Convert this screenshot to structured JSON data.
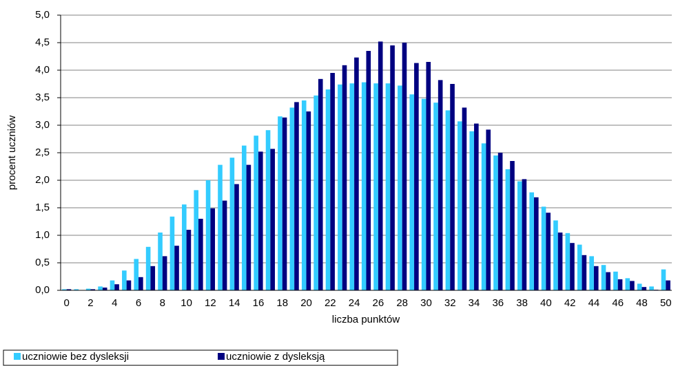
{
  "chart_data": {
    "type": "bar",
    "x_label": "liczba punktów",
    "y_label": "procent uczniów",
    "categories": [
      0,
      null,
      2,
      null,
      4,
      null,
      6,
      null,
      8,
      null,
      10,
      null,
      12,
      null,
      14,
      null,
      16,
      null,
      18,
      null,
      20,
      null,
      22,
      null,
      24,
      null,
      26,
      null,
      28,
      null,
      30,
      null,
      32,
      null,
      34,
      null,
      36,
      null,
      38,
      null,
      40,
      null,
      42,
      null,
      44,
      null,
      46,
      null,
      48,
      null,
      50
    ],
    "series": [
      {
        "name": "uczniowie bez dysleksji",
        "color": "#33ccff",
        "values": [
          0.02,
          0.02,
          0.03,
          0.07,
          0.18,
          0.36,
          0.57,
          0.79,
          1.05,
          1.34,
          1.56,
          1.82,
          2.0,
          2.28,
          2.41,
          2.63,
          2.81,
          2.91,
          3.16,
          3.32,
          3.45,
          3.54,
          3.65,
          3.74,
          3.76,
          3.78,
          3.76,
          3.76,
          3.72,
          3.56,
          3.48,
          3.41,
          3.27,
          3.07,
          2.89,
          2.67,
          2.45,
          2.2,
          1.98,
          1.78,
          1.52,
          1.27,
          1.04,
          0.83,
          0.62,
          0.46,
          0.34,
          0.22,
          0.12,
          0.07,
          0.38
        ]
      },
      {
        "name": "uczniowie z dysleksją",
        "color": "#000080",
        "values": [
          0.02,
          0.0,
          0.02,
          0.05,
          0.11,
          0.18,
          0.24,
          0.44,
          0.62,
          0.81,
          1.1,
          1.3,
          1.49,
          1.63,
          1.93,
          2.28,
          2.52,
          2.57,
          3.14,
          3.42,
          3.25,
          3.84,
          3.95,
          4.09,
          4.23,
          4.35,
          4.52,
          4.45,
          4.5,
          4.13,
          4.15,
          3.82,
          3.75,
          3.32,
          3.03,
          2.92,
          2.5,
          2.35,
          2.02,
          1.69,
          1.41,
          1.05,
          0.86,
          0.64,
          0.44,
          0.33,
          0.2,
          0.17,
          0.06,
          0.01,
          0.18
        ]
      }
    ],
    "ylim": [
      0,
      5
    ],
    "yticks": [
      {
        "value": 0,
        "label": "0,0"
      },
      {
        "value": 0.5,
        "label": "0,5"
      },
      {
        "value": 1,
        "label": "1,0"
      },
      {
        "value": 1.5,
        "label": "1,5"
      },
      {
        "value": 2,
        "label": "2,0"
      },
      {
        "value": 2.5,
        "label": "2,5"
      },
      {
        "value": 3,
        "label": "3,0"
      },
      {
        "value": 3.5,
        "label": "3,5"
      },
      {
        "value": 4,
        "label": "4,0"
      },
      {
        "value": 4.5,
        "label": "4,5"
      },
      {
        "value": 5,
        "label": "5,0"
      }
    ],
    "grid": true,
    "legend": "bottom-left"
  }
}
